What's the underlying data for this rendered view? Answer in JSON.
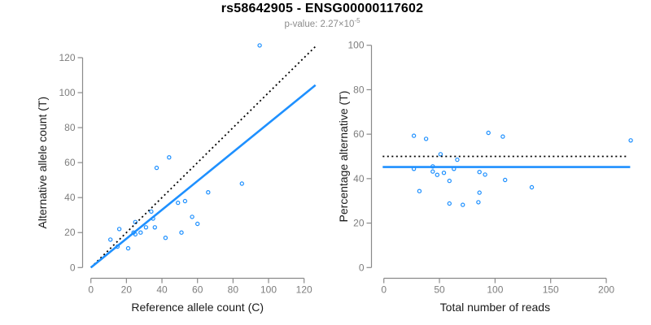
{
  "header": {
    "title": "rs58642905 - ENSG00000117602",
    "subtitle_prefix": "p-value: 2.27×10",
    "subtitle_exponent": "-5"
  },
  "colors": {
    "accent_blue": "#1E90FF",
    "identity_black": "#000000",
    "axis_gray": "#8a8a8a",
    "tick_label_gray": "#7d7d7d",
    "axis_title_black": "#1a1a1a",
    "subtitle_gray": "#8c8c8c",
    "background": "#ffffff"
  },
  "chart_data": [
    {
      "id": "allele-count-scatter",
      "type": "scatter",
      "title": "",
      "xlabel": "Reference allele count (C)",
      "ylabel": "Alternative allele count (T)",
      "xticks": [
        0,
        20,
        40,
        60,
        80,
        100,
        120
      ],
      "yticks": [
        0,
        20,
        40,
        60,
        80,
        100,
        120
      ],
      "xlim": [
        0,
        126.4
      ],
      "ylim": [
        0,
        127.9
      ],
      "grid": false,
      "legend": "none",
      "points": [
        [
          95,
          127
        ],
        [
          44,
          63
        ],
        [
          37,
          57
        ],
        [
          85,
          48
        ],
        [
          66,
          43
        ],
        [
          53,
          38
        ],
        [
          49,
          37
        ],
        [
          34,
          32
        ],
        [
          57,
          29
        ],
        [
          35,
          28
        ],
        [
          25,
          26
        ],
        [
          60,
          25
        ],
        [
          31,
          23
        ],
        [
          36,
          23
        ],
        [
          16,
          22
        ],
        [
          24,
          20
        ],
        [
          28,
          20
        ],
        [
          51,
          20
        ],
        [
          25,
          19
        ],
        [
          42,
          17
        ],
        [
          11,
          16
        ],
        [
          15,
          12
        ],
        [
          21,
          11
        ]
      ],
      "lines": [
        {
          "name": "identity-line",
          "style": "dotted",
          "color": "black",
          "slope": 1,
          "intercept": 0,
          "x1": 0,
          "y1": 0,
          "x2": 126.4,
          "y2": 126.4
        },
        {
          "name": "fit-line",
          "style": "solid",
          "color": "blue",
          "slope": 0.825,
          "intercept": 0,
          "x1": 0,
          "y1": 0,
          "x2": 126.4,
          "y2": 104.3
        }
      ]
    },
    {
      "id": "percentage-reads-scatter",
      "type": "scatter",
      "title": "",
      "xlabel": "Total number of reads",
      "ylabel": "Percentage alternative (T)",
      "xticks": [
        0,
        50,
        100,
        150,
        200
      ],
      "yticks": [
        0,
        20,
        40,
        60,
        80,
        100
      ],
      "xlim": [
        0,
        222
      ],
      "ylim": [
        0,
        100
      ],
      "grid": false,
      "legend": "none",
      "points": [
        [
          222,
          57.2
        ],
        [
          107,
          58.9
        ],
        [
          94,
          60.6
        ],
        [
          133,
          36.1
        ],
        [
          109,
          39.4
        ],
        [
          91,
          41.8
        ],
        [
          86,
          43.0
        ],
        [
          66,
          48.5
        ],
        [
          86,
          33.7
        ],
        [
          63,
          44.4
        ],
        [
          51,
          51.0
        ],
        [
          85,
          29.4
        ],
        [
          54,
          42.6
        ],
        [
          59,
          39.0
        ],
        [
          38,
          57.9
        ],
        [
          44,
          45.5
        ],
        [
          48,
          41.7
        ],
        [
          71,
          28.2
        ],
        [
          44,
          43.2
        ],
        [
          59,
          28.8
        ],
        [
          27,
          59.3
        ],
        [
          27,
          44.4
        ],
        [
          32,
          34.4
        ]
      ],
      "lines": [
        {
          "name": "expected-50pct-line",
          "style": "dotted",
          "color": "black",
          "value": 50,
          "x1": -1,
          "y1": 50,
          "x2": 218,
          "y2": 50
        },
        {
          "name": "mean-percentage-line",
          "style": "solid",
          "color": "blue",
          "value": 45.2,
          "x1": -1,
          "y1": 45.2,
          "x2": 221.5,
          "y2": 45.2
        }
      ]
    }
  ]
}
